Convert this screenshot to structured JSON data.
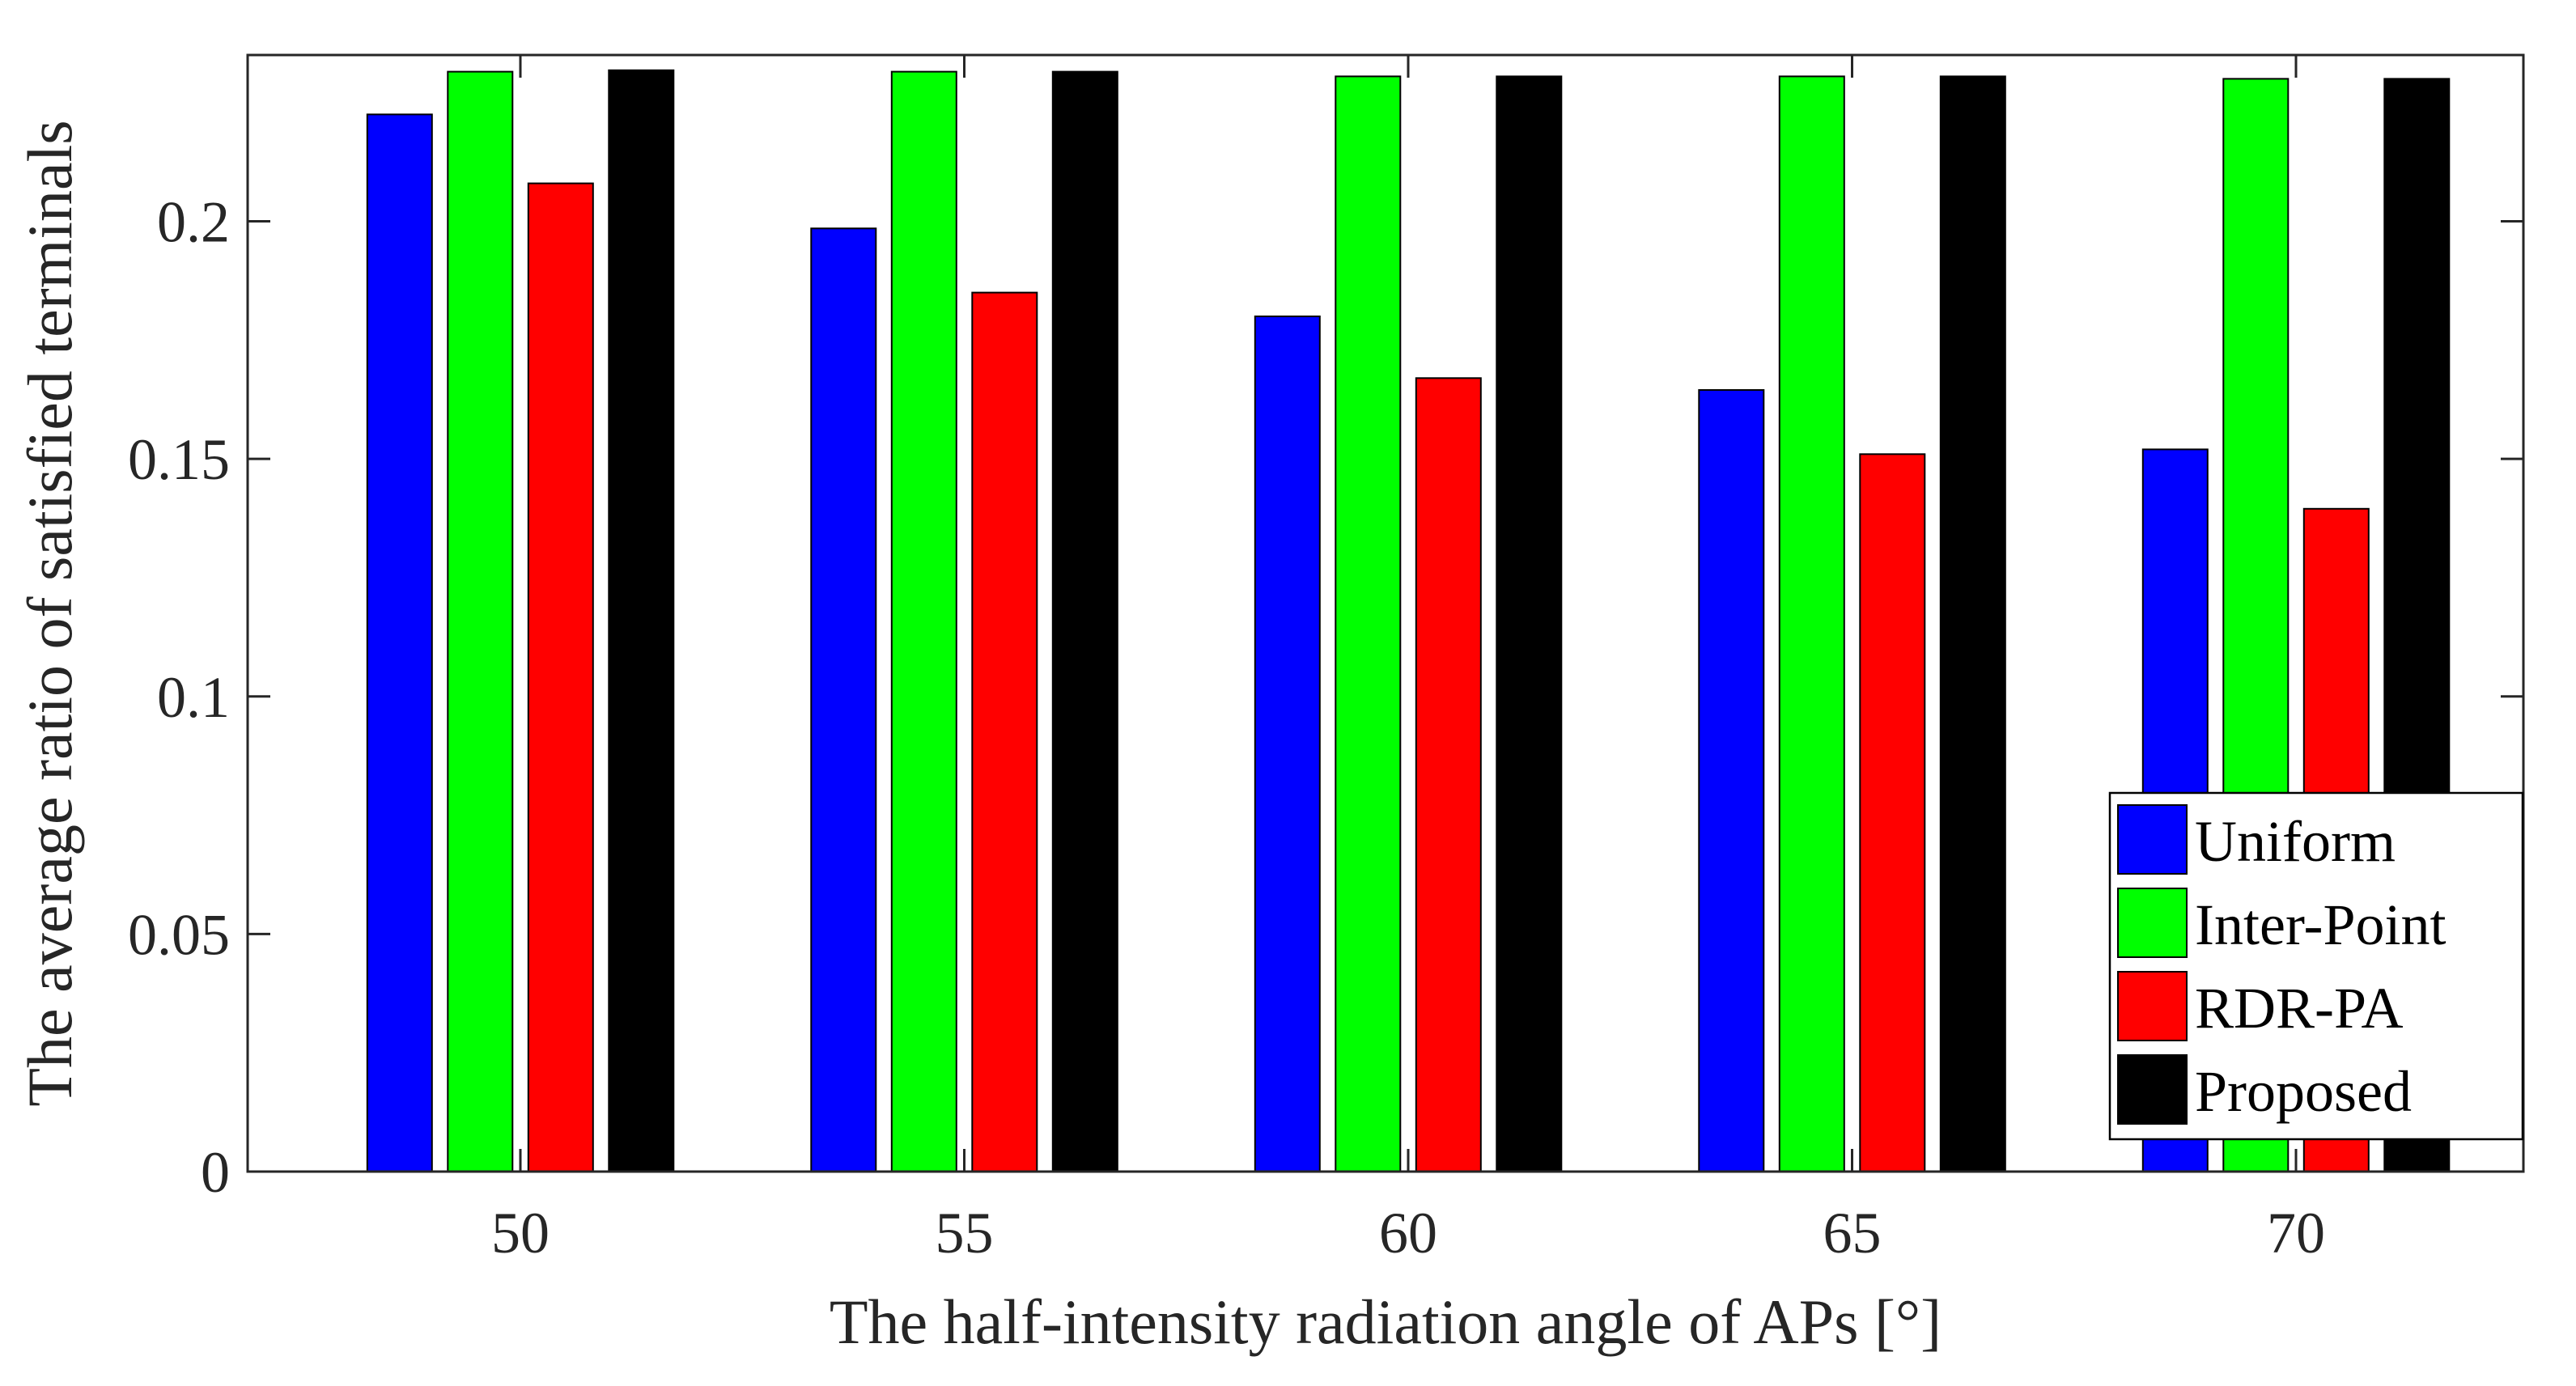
{
  "chart_data": {
    "type": "bar",
    "title": "",
    "xlabel": "The half-intensity radiation angle of APs [°]",
    "ylabel": "The average ratio of satisfied terminals",
    "categories": [
      "50",
      "55",
      "60",
      "65",
      "70"
    ],
    "ylim": [
      0,
      0.235
    ],
    "yticks": [
      0,
      0.05,
      0.1,
      0.15,
      0.2
    ],
    "ytick_labels": [
      "0",
      "0.05",
      "0.1",
      "0.15",
      "0.2"
    ],
    "grid": false,
    "legend_position": "bottom-right",
    "series": [
      {
        "name": "Uniform",
        "color": "#0000ff",
        "values": [
          0.2225,
          0.1985,
          0.18,
          0.1645,
          0.152
        ]
      },
      {
        "name": "Inter-Point",
        "color": "#00ff00",
        "values": [
          0.2315,
          0.2315,
          0.2305,
          0.2305,
          0.23
        ]
      },
      {
        "name": "RDR-PA",
        "color": "#ff0000",
        "values": [
          0.208,
          0.185,
          0.167,
          0.151,
          0.1395
        ]
      },
      {
        "name": "Proposed",
        "color": "#000000",
        "values": [
          0.2318,
          0.2315,
          0.2305,
          0.2305,
          0.23
        ]
      }
    ]
  }
}
